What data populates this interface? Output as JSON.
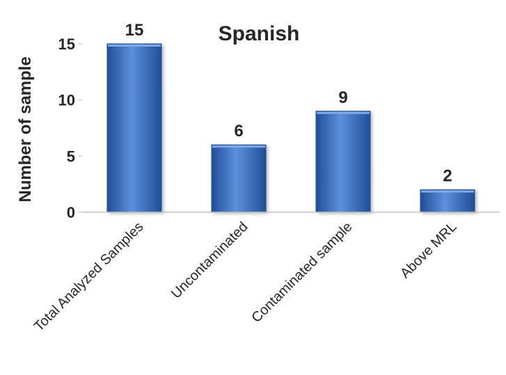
{
  "chart_data": {
    "type": "bar",
    "title": "Spanish",
    "xlabel": "",
    "ylabel": "Number of sample",
    "categories": [
      "Total Analyzed Samples",
      "Uncontaminated",
      "Contaminated sample",
      "Above MRL"
    ],
    "values": [
      15,
      6,
      9,
      2
    ],
    "data_labels": [
      "15",
      "6",
      "9",
      "2"
    ],
    "ylim": [
      0,
      15
    ],
    "yticks": [
      0,
      5,
      10,
      15
    ],
    "grid": false,
    "legend": "none",
    "bar_color": "#3a6fc0",
    "bar_color_light": "#5d8fdc",
    "bar_color_dark": "#1f4f97",
    "text_color": "#262626"
  }
}
